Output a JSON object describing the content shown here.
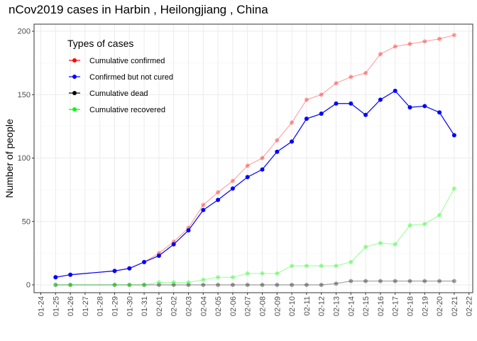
{
  "chart_data": {
    "type": "line",
    "title": "nCov2019 cases in Harbin , Heilongjiang , China",
    "xlabel": "",
    "ylabel": "Number of people",
    "ylim": [
      -4,
      206
    ],
    "y_ticks": [
      0,
      50,
      100,
      150,
      200
    ],
    "x_ticks": [
      "01-24",
      "01-25",
      "01-26",
      "01-27",
      "01-28",
      "01-29",
      "01-30",
      "01-31",
      "02-01",
      "02-02",
      "02-03",
      "02-04",
      "02-05",
      "02-06",
      "02-07",
      "02-08",
      "02-09",
      "02-10",
      "02-11",
      "02-12",
      "02-13",
      "02-14",
      "02-15",
      "02-16",
      "02-17",
      "02-18",
      "02-19",
      "02-20",
      "02-21",
      "02-22"
    ],
    "grid": true,
    "legend": {
      "title": "Types of cases",
      "position": "top-left"
    },
    "series": [
      {
        "name": "Cumulative confirmed",
        "color": "#ff0000",
        "x": [
          "01-25",
          "01-26",
          "01-29",
          "01-30",
          "01-31",
          "02-01",
          "02-02",
          "02-03",
          "02-04",
          "02-05",
          "02-06",
          "02-07",
          "02-08",
          "02-09",
          "02-10",
          "02-11",
          "02-12",
          "02-13",
          "02-14",
          "02-15",
          "02-16",
          "02-17",
          "02-18",
          "02-19",
          "02-20",
          "02-21"
        ],
        "values": [
          6,
          8,
          11,
          13,
          18,
          25,
          34,
          45,
          63,
          73,
          82,
          94,
          100,
          114,
          128,
          146,
          150,
          159,
          164,
          167,
          182,
          188,
          190,
          192,
          194,
          197
        ]
      },
      {
        "name": "Confirmed but not cured",
        "color": "#0000ff",
        "x": [
          "01-25",
          "01-26",
          "01-29",
          "01-30",
          "01-31",
          "02-01",
          "02-02",
          "02-03",
          "02-04",
          "02-05",
          "02-06",
          "02-07",
          "02-08",
          "02-09",
          "02-10",
          "02-11",
          "02-12",
          "02-13",
          "02-14",
          "02-15",
          "02-16",
          "02-17",
          "02-18",
          "02-19",
          "02-20",
          "02-21"
        ],
        "values": [
          6,
          8,
          11,
          13,
          18,
          23,
          32,
          43,
          59,
          67,
          76,
          85,
          91,
          105,
          113,
          131,
          135,
          143,
          143,
          134,
          146,
          153,
          140,
          141,
          136,
          118
        ]
      },
      {
        "name": "Cumulative dead",
        "color": "#000000",
        "x": [
          "01-25",
          "01-26",
          "01-29",
          "01-30",
          "01-31",
          "02-01",
          "02-02",
          "02-03",
          "02-04",
          "02-05",
          "02-06",
          "02-07",
          "02-08",
          "02-09",
          "02-10",
          "02-11",
          "02-12",
          "02-13",
          "02-14",
          "02-15",
          "02-16",
          "02-17",
          "02-18",
          "02-19",
          "02-20",
          "02-21"
        ],
        "values": [
          0,
          0,
          0,
          0,
          0,
          0,
          0,
          0,
          0,
          0,
          0,
          0,
          0,
          0,
          0,
          0,
          0,
          1,
          3,
          3,
          3,
          3,
          3,
          3,
          3,
          3
        ]
      },
      {
        "name": "Cumulative recovered",
        "color": "#00ff00",
        "x": [
          "01-25",
          "01-26",
          "01-29",
          "01-30",
          "01-31",
          "02-01",
          "02-02",
          "02-03",
          "02-04",
          "02-05",
          "02-06",
          "02-07",
          "02-08",
          "02-09",
          "02-10",
          "02-11",
          "02-12",
          "02-13",
          "02-14",
          "02-15",
          "02-16",
          "02-17",
          "02-18",
          "02-19",
          "02-20",
          "02-21"
        ],
        "values": [
          0,
          0,
          0,
          0,
          0,
          2,
          2,
          2,
          4,
          6,
          6,
          9,
          9,
          9,
          15,
          15,
          15,
          15,
          18,
          30,
          33,
          32,
          47,
          48,
          55,
          76
        ]
      }
    ]
  }
}
